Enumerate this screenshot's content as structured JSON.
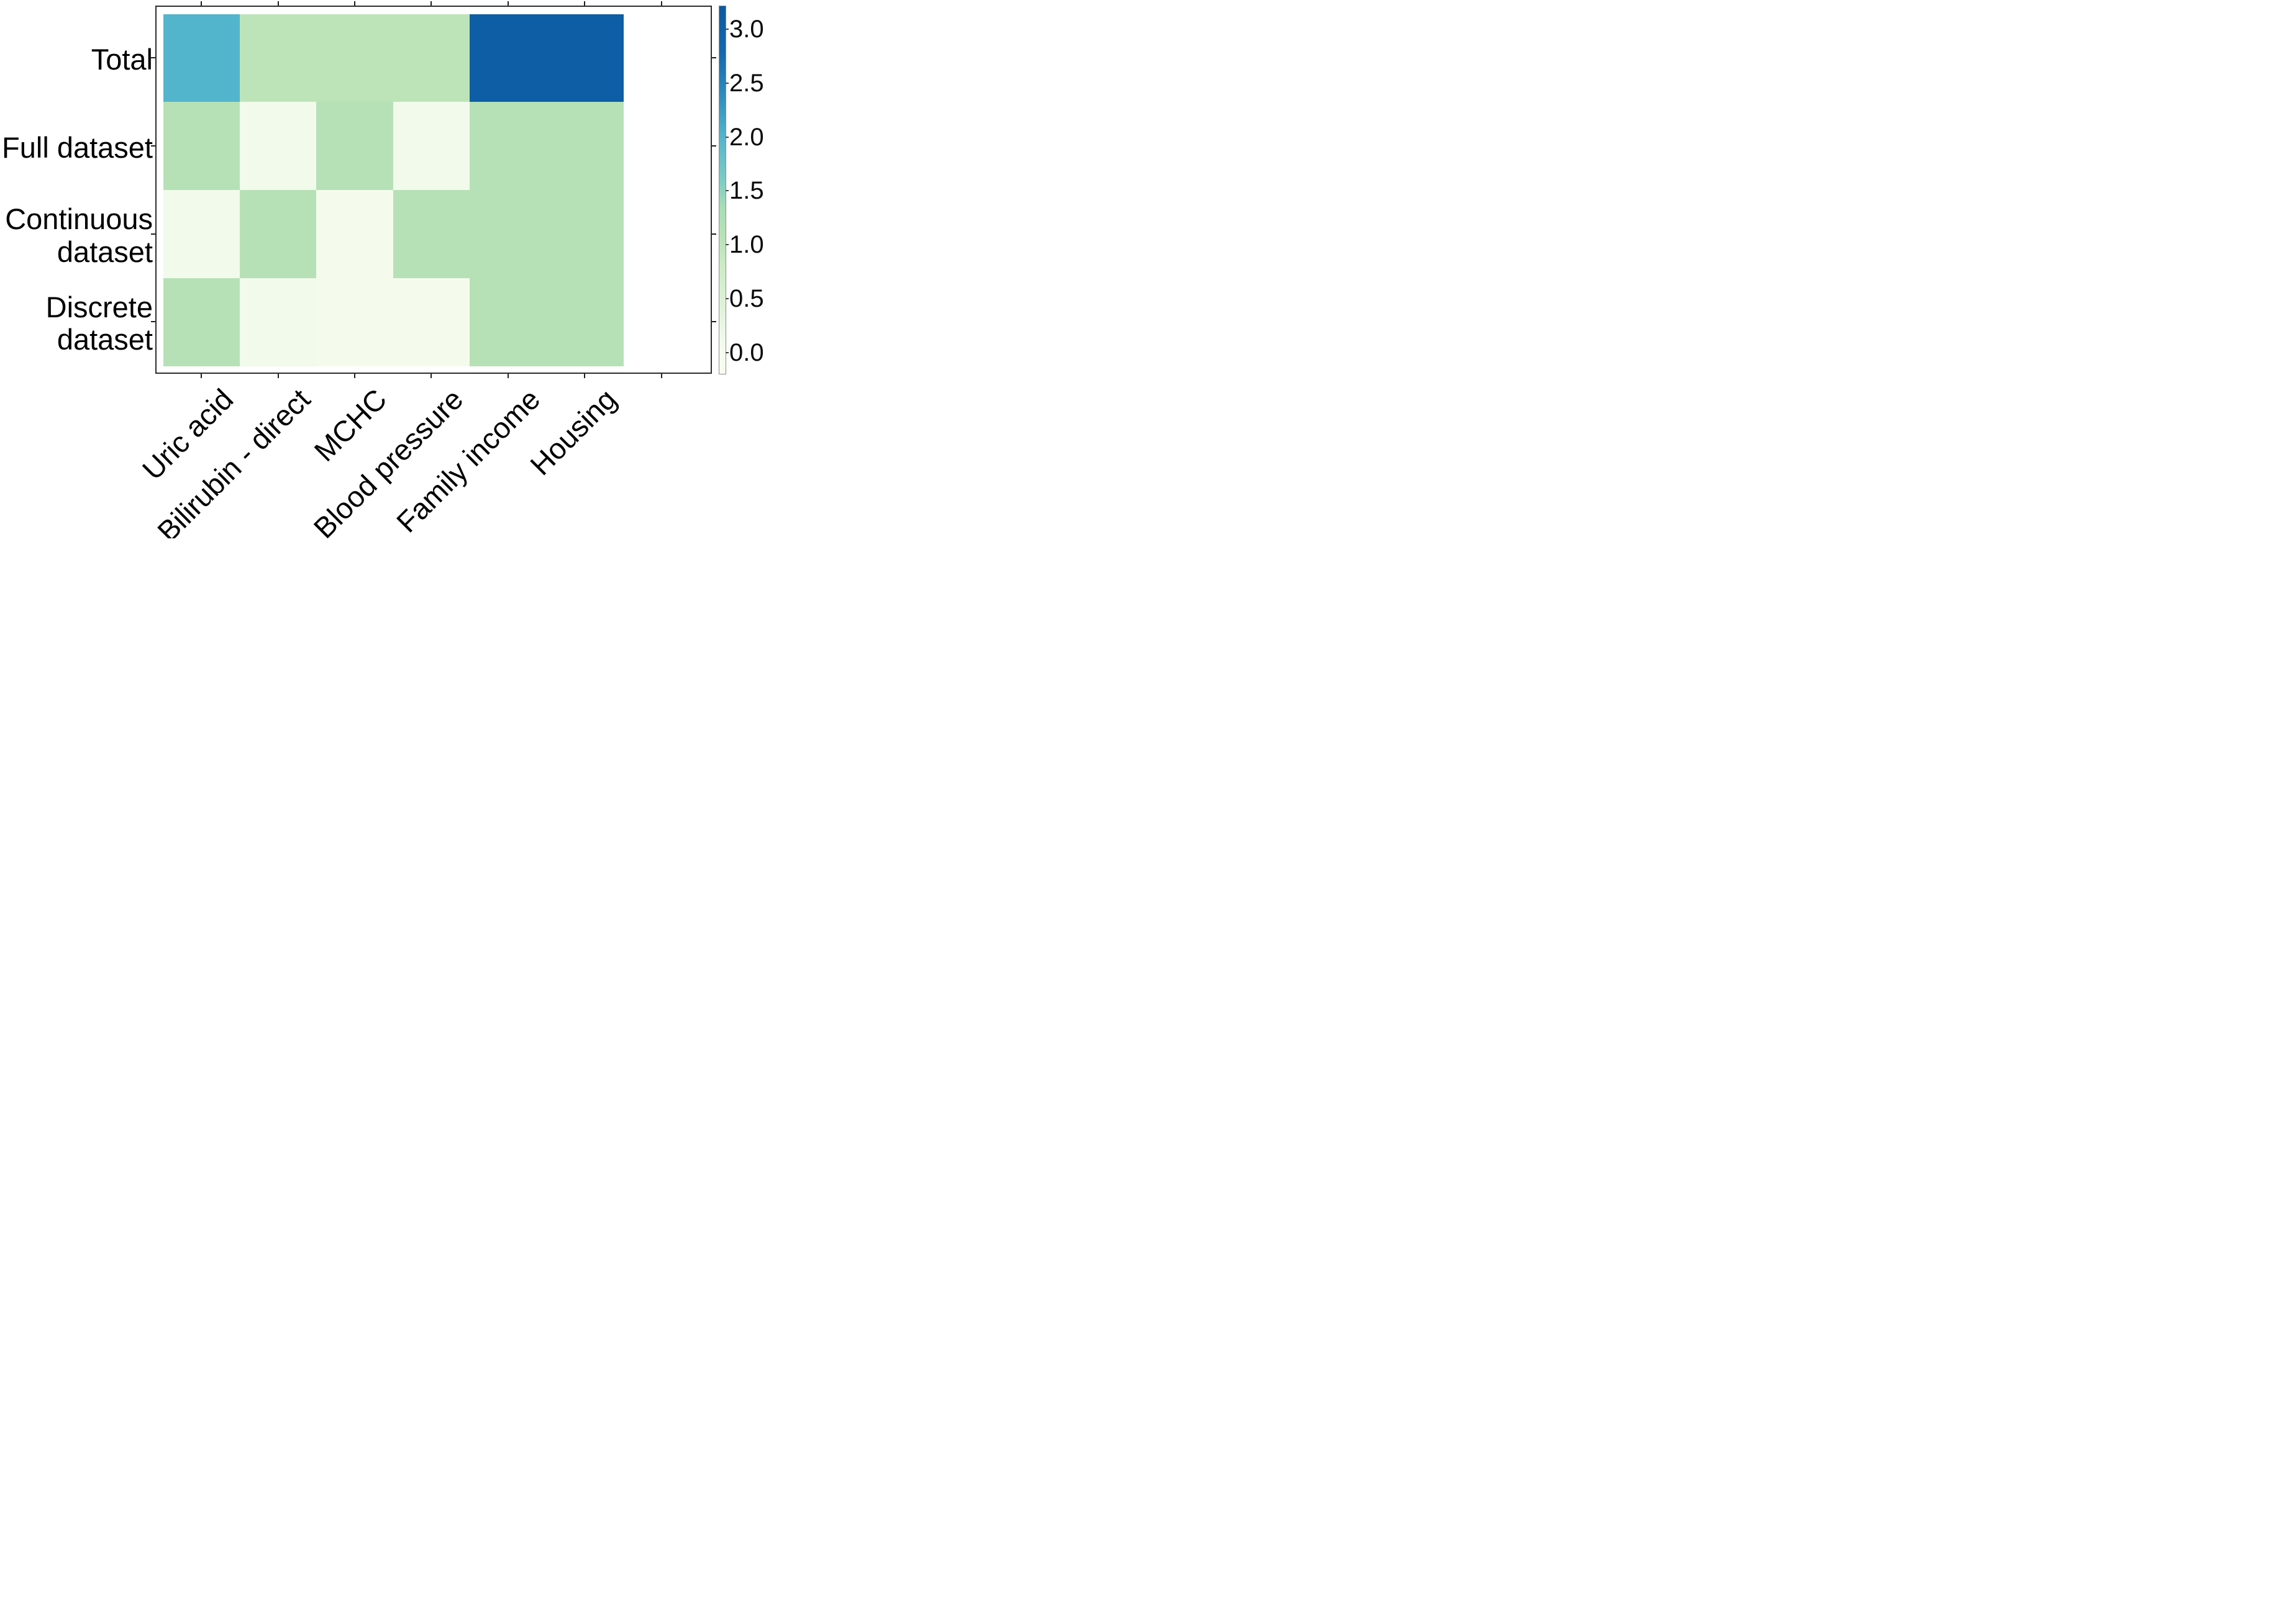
{
  "figure": {
    "background_color": "#ffffff",
    "frame_color": "#2e2e2e",
    "tick_color": "#1f1f1f",
    "text_color": "#000000"
  },
  "chart_data": {
    "type": "heatmap",
    "title": "",
    "xlabel": "",
    "ylabel": "",
    "x_categories": [
      "Uric acid",
      "Bilirubin - direct",
      "MCHC",
      "Blood pressure",
      "Family income",
      "Housing"
    ],
    "y_categories": [
      "Total",
      "Full dataset",
      "Continuous dataset",
      "Discrete dataset"
    ],
    "y_categories_display": [
      [
        "Total"
      ],
      [
        "Full dataset"
      ],
      [
        "Continuous",
        "dataset"
      ],
      [
        "Discrete",
        "dataset"
      ]
    ],
    "values": [
      [
        2.0,
        1.0,
        1.0,
        1.0,
        3.1,
        3.1
      ],
      [
        1.1,
        0.1,
        1.1,
        0.1,
        1.1,
        1.1
      ],
      [
        0.1,
        1.1,
        0.05,
        1.1,
        1.1,
        1.1
      ],
      [
        1.1,
        0.1,
        0.05,
        0.05,
        1.1,
        1.1
      ]
    ],
    "vmin": 0,
    "vmax": 3.2,
    "grid": false,
    "x_tick_positions_per_axis": 7,
    "legend_position": "none",
    "colormap": {
      "name": "GnBu-like (white-green-blue)",
      "stops": [
        [
          0.0,
          "#f7fcf0"
        ],
        [
          0.125,
          "#e0f3db"
        ],
        [
          0.25,
          "#ccebc5"
        ],
        [
          0.33,
          "#b9e2b6"
        ],
        [
          0.42,
          "#a8ddb5"
        ],
        [
          0.5,
          "#7bccc4"
        ],
        [
          0.625,
          "#52b5cc"
        ],
        [
          0.75,
          "#2b8cbe"
        ],
        [
          0.875,
          "#1268ae"
        ],
        [
          1.0,
          "#0b5aa2"
        ]
      ]
    },
    "colorbar": {
      "position": "right",
      "tick_labels": [
        "3.0",
        "2.5",
        "2.0",
        "1.5",
        "1.0",
        "0.5",
        "0.0"
      ],
      "tick_values": [
        3.0,
        2.5,
        2.0,
        1.5,
        1.0,
        0.5,
        0.0
      ],
      "value_top": 3.217,
      "value_bottom": -0.2
    },
    "observed_cell_colors": {
      "teal": "#57b7cd",
      "light_green": "#bce3bc",
      "near_white": "#f5faf0",
      "dark_blue": "#0b5aa2"
    }
  }
}
